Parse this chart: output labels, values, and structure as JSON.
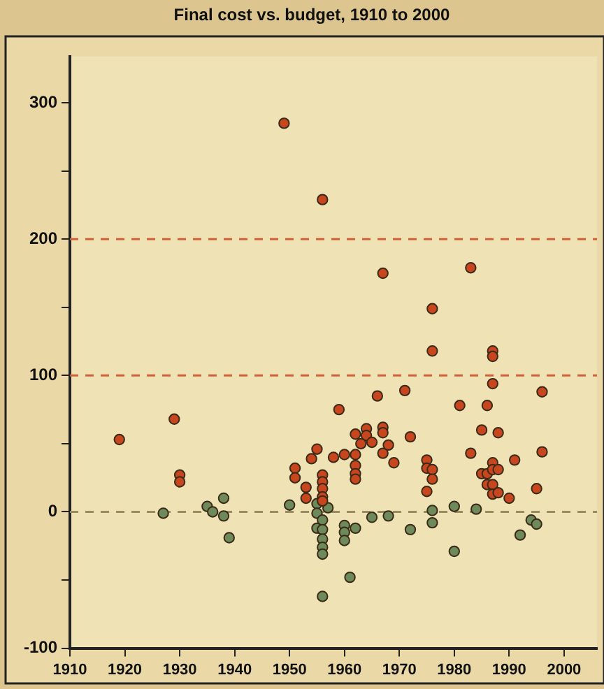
{
  "chart_data": {
    "type": "scatter",
    "title": "Final cost vs. budget, 1910 to 2000",
    "xlim": [
      1910,
      2006
    ],
    "xticks": [
      1910,
      1920,
      1930,
      1940,
      1950,
      1960,
      1970,
      1980,
      1990,
      2000
    ],
    "ylim": [
      -100,
      334
    ],
    "yticks": [
      -100,
      {
        "value": -50,
        "label": null
      },
      0,
      {
        "value": 50,
        "label": null
      },
      100,
      {
        "value": 150,
        "label": null
      },
      200,
      {
        "value": 250,
        "label": null
      },
      300
    ],
    "grid": false,
    "legend": false,
    "marker": "circle",
    "ref_lines": [
      {
        "axis": "y",
        "value": 200,
        "color": "#d0603a",
        "line_style": "dashed"
      },
      {
        "axis": "y",
        "value": 100,
        "color": "#d0603a",
        "line_style": "dashed"
      },
      {
        "axis": "y",
        "value": 0,
        "color": "#9a8a60",
        "line_style": "dashed"
      }
    ],
    "series": [
      {
        "color": "#c8461e",
        "x": [
          1919,
          1929,
          1930,
          1930,
          1949,
          1956,
          1967,
          1983,
          1976,
          1976,
          1987,
          1987,
          1987,
          1966,
          1971,
          1959,
          1981,
          1986,
          1996,
          1985,
          1988,
          1972,
          1951,
          1951,
          1953,
          1953,
          1954,
          1955,
          1956,
          1956,
          1956,
          1956,
          1956,
          1958,
          1960,
          1962,
          1962,
          1962,
          1962,
          1962,
          1963,
          1964,
          1964,
          1965,
          1967,
          1967,
          1967,
          1968,
          1969,
          1975,
          1975,
          1976,
          1976,
          1975,
          1983,
          1985,
          1986,
          1987,
          1987,
          1988,
          1986,
          1987,
          1987,
          1988,
          1990,
          1991,
          1995,
          1996
        ],
        "values": [
          53,
          68,
          27,
          22,
          285,
          229,
          175,
          179,
          149,
          118,
          118,
          114,
          94,
          85,
          89,
          75,
          78,
          78,
          88,
          60,
          58,
          55,
          32,
          25,
          18,
          10,
          39,
          46,
          27,
          22,
          17,
          11,
          8,
          40,
          42,
          57,
          42,
          34,
          28,
          24,
          50,
          61,
          56,
          51,
          62,
          58,
          43,
          49,
          36,
          38,
          32,
          31,
          24,
          15,
          43,
          28,
          28,
          36,
          31,
          31,
          20,
          20,
          13,
          14,
          10,
          38,
          17,
          44
        ]
      },
      {
        "color": "#6e8a5a",
        "x": [
          1927,
          1935,
          1936,
          1938,
          1938,
          1939,
          1950,
          1955,
          1955,
          1955,
          1956,
          1956,
          1956,
          1956,
          1956,
          1957,
          1960,
          1960,
          1960,
          1962,
          1961,
          1956,
          1965,
          1968,
          1972,
          1976,
          1976,
          1980,
          1980,
          1984,
          1992,
          1994,
          1995
        ],
        "values": [
          -1,
          4,
          0,
          10,
          -3,
          -19,
          5,
          6,
          -1,
          -12,
          -6,
          -13,
          -20,
          -26,
          -31,
          3,
          -10,
          -15,
          -21,
          -12,
          -48,
          -62,
          -4,
          -3,
          -13,
          1,
          -8,
          4,
          -29,
          2,
          -17,
          -6,
          -9
        ]
      }
    ]
  }
}
